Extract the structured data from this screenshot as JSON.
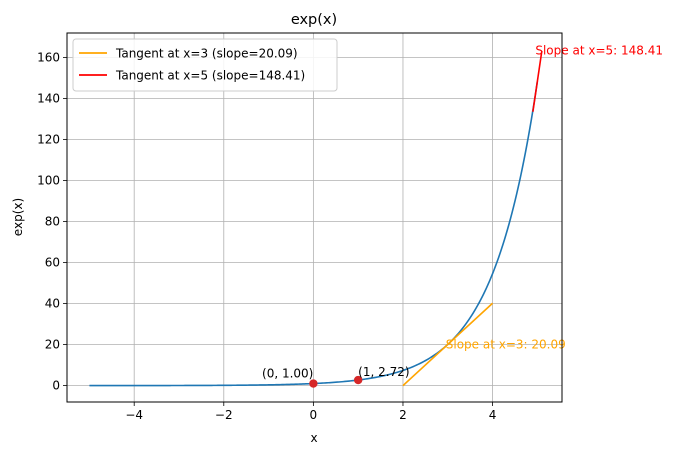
{
  "chart_data": {
    "type": "line",
    "title": "exp(x)",
    "xlabel": "x",
    "ylabel": "exp(x)",
    "xlim": [
      -5.5,
      5.55
    ],
    "ylim": [
      -8,
      172
    ],
    "xticks": [
      -4,
      -2,
      0,
      2,
      4
    ],
    "yticks": [
      0,
      20,
      40,
      60,
      80,
      100,
      120,
      140,
      160
    ],
    "grid": true,
    "legend_position": "top-left",
    "series": [
      {
        "name": "",
        "color": "#1f77b4",
        "function": "exp",
        "x_range": [
          -5,
          5
        ]
      },
      {
        "name": "Tangent at x=3 (slope=20.09)",
        "color": "#ffa500",
        "x": [
          2,
          4
        ],
        "y": [
          0,
          40.17
        ]
      },
      {
        "name": "Tangent at x=5 (slope=148.41)",
        "color": "#ff0000",
        "x": [
          4.9,
          5.1
        ],
        "y": [
          133.57,
          163.25
        ]
      }
    ],
    "points": [
      {
        "x": 0,
        "y": 1.0,
        "label": "(0, 1.00)"
      },
      {
        "x": 1,
        "y": 2.72,
        "label": "(1, 2.72)"
      }
    ],
    "annotations": [
      {
        "x": 3,
        "y": 20.09,
        "text": "Slope at x=3: 20.09",
        "color": "#ffa500"
      },
      {
        "x": 5,
        "y": 163.5,
        "text": "Slope at x=5: 148.41",
        "color": "#ff0000"
      }
    ],
    "point_color": "#d62728"
  }
}
